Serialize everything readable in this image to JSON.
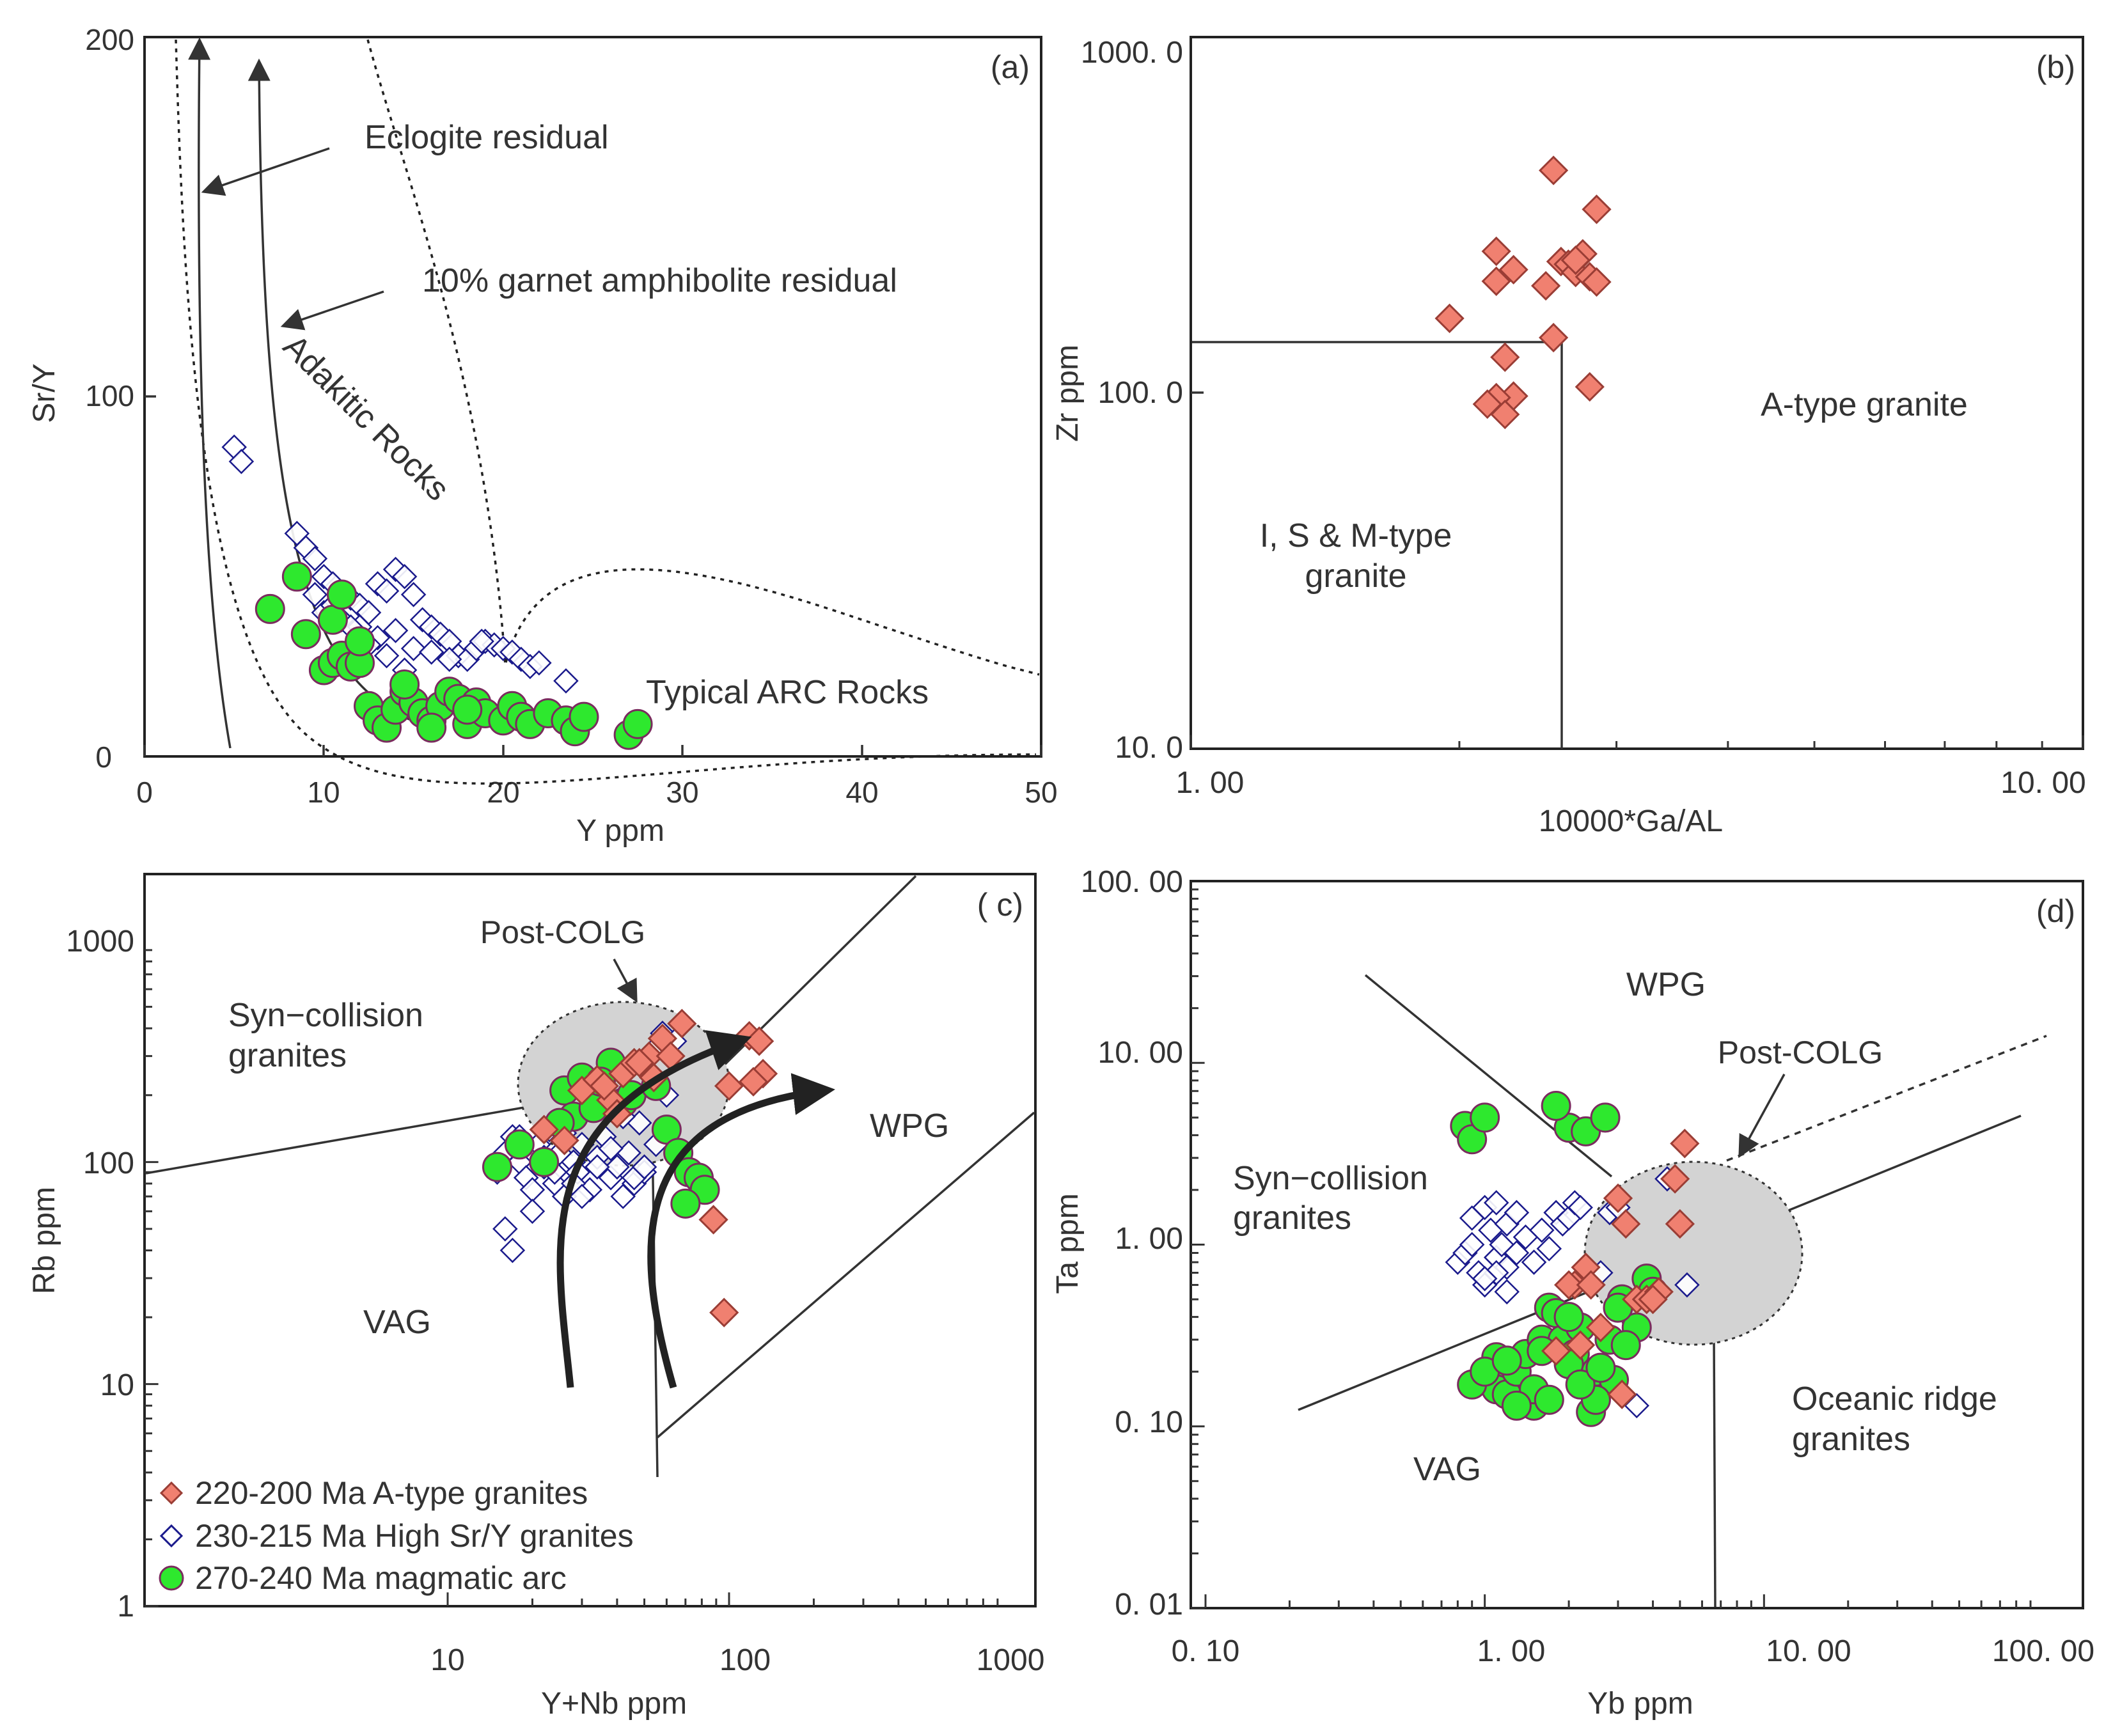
{
  "chart_data": [
    {
      "panel": "a",
      "type": "scatter",
      "panel_label": "(a)",
      "xlabel": "Y ppm",
      "ylabel": "Sr/Y",
      "xlim": [
        0,
        50
      ],
      "ylim": [
        0,
        200
      ],
      "xticks": [
        "0",
        "10",
        "20",
        "30",
        "40",
        "50"
      ],
      "yticks": [
        "0",
        "100",
        "200"
      ],
      "annotations": [
        "Eclogite residual",
        "10% garnet amphibolite residual",
        "Adakitic Rocks",
        "Typical  ARC  Rocks"
      ],
      "series": [
        {
          "name": "230-215 Ma High Sr/Y granites",
          "marker": "open-diamond",
          "x": [
            5,
            5.4,
            8.5,
            9,
            9.5,
            10,
            10.5,
            11,
            11.5,
            12,
            12.5,
            13,
            13.5,
            14,
            14.5,
            15,
            15.5,
            16,
            16.5,
            17,
            17.5,
            18,
            18.5,
            19,
            19.5,
            20,
            20.5,
            21,
            21.5,
            22,
            23.5,
            10,
            11,
            12,
            13,
            14,
            15,
            16,
            17,
            9.5,
            10.5,
            11.5,
            12.5,
            13.5,
            14.5,
            18.8
          ],
          "y": [
            86,
            82,
            62,
            58,
            55,
            50,
            48,
            45,
            44,
            42,
            40,
            48,
            46,
            52,
            50,
            45,
            38,
            36,
            34,
            32,
            28,
            27,
            30,
            32,
            31,
            30,
            29,
            27,
            25,
            26,
            21,
            40,
            38,
            36,
            33,
            35,
            30,
            29,
            27,
            45,
            42,
            36,
            31,
            28,
            24,
            32
          ]
        },
        {
          "name": "270-240 Ma magmatic arc",
          "marker": "green-circle",
          "x": [
            7,
            8.5,
            9,
            10,
            10.5,
            11,
            11.5,
            12,
            12.5,
            13,
            13.5,
            14,
            14.5,
            15,
            15.5,
            16,
            16.5,
            17,
            17.5,
            18,
            18.5,
            19,
            20,
            20.5,
            21,
            21.5,
            22.5,
            23.5,
            24,
            24.5,
            27,
            27.5,
            12,
            14.5,
            10.5,
            11,
            16,
            18
          ],
          "y": [
            41,
            50,
            34,
            24,
            26,
            28,
            25,
            26,
            14,
            10,
            8,
            13,
            18,
            15,
            12,
            10,
            14,
            18,
            16,
            9,
            15,
            12,
            10,
            14,
            11,
            9,
            12,
            10,
            7,
            11,
            6,
            9,
            32,
            20,
            38,
            45,
            8,
            13
          ]
        }
      ]
    },
    {
      "panel": "b",
      "type": "scatter",
      "panel_label": "(b)",
      "xlabel": "10000*Ga/AL",
      "ylabel": "Zr ppm",
      "xscale": "log",
      "yscale": "log",
      "xlim": [
        1,
        10
      ],
      "ylim": [
        10,
        1000
      ],
      "xticks": [
        "1. 00",
        "10. 00"
      ],
      "yticks": [
        "10. 0",
        "100. 0",
        "1000. 0"
      ],
      "annotations": [
        "A-type granite",
        "I, S & M-type",
        "granite"
      ],
      "series": [
        {
          "name": "220-200 Ma A-type granites",
          "marker": "filled-diamond",
          "x": [
            1.95,
            2.2,
            2.3,
            2.2,
            2.25,
            2.3,
            2.5,
            2.55,
            2.6,
            2.65,
            2.7,
            2.75,
            2.8,
            2.85,
            2.55,
            2.7,
            2.85,
            2.8,
            2.2,
            2.25,
            2.15
          ],
          "y": [
            162,
            250,
            222,
            206,
            126,
            98,
            200,
            422,
            234,
            230,
            218,
            246,
            212,
            328,
            143,
            236,
            205,
            104,
            97,
            87,
            93
          ]
        }
      ]
    },
    {
      "panel": "c",
      "type": "scatter",
      "panel_label": "( c)",
      "xlabel": "Y+Nb ppm",
      "ylabel": "Rb ppm",
      "xscale": "log",
      "yscale": "log",
      "xlim": [
        1,
        1000
      ],
      "ylim": [
        1,
        2000
      ],
      "xticks": [
        "10",
        "100",
        "1000"
      ],
      "yticks": [
        "1",
        "10",
        "100",
        "1000"
      ],
      "annotations": [
        "Post-COLG",
        "Syn−collision",
        "granites",
        "WPG",
        "VAG"
      ],
      "legend": [
        "220-200 Ma A-type granites",
        "230-215 Ma High Sr/Y granites",
        "270-240 Ma magmatic arc"
      ],
      "series": [
        {
          "name": "220-200 Ma A-type granites",
          "marker": "filled-diamond",
          "x": [
            22,
            26,
            30,
            34,
            38,
            42,
            46,
            52,
            58,
            62,
            68,
            118,
            128,
            132,
            122,
            88,
            96,
            100,
            36,
            40,
            48,
            54
          ],
          "y": [
            140,
            125,
            210,
            235,
            190,
            250,
            280,
            300,
            360,
            300,
            420,
            370,
            350,
            250,
            230,
            55,
            21,
            220,
            220,
            165,
            280,
            240
          ]
        },
        {
          "name": "230-215 Ma High Sr/Y granites",
          "marker": "open-diamond",
          "x": [
            15,
            16,
            17,
            18,
            19,
            20,
            21,
            22,
            23,
            24,
            25,
            26,
            27,
            28,
            29,
            30,
            32,
            34,
            36,
            38,
            40,
            42,
            44,
            46,
            48,
            50,
            52,
            54,
            58,
            16,
            17,
            18,
            20,
            22,
            24,
            26,
            28,
            30,
            34,
            38,
            42,
            46,
            50,
            55,
            60,
            64
          ],
          "y": [
            90,
            110,
            130,
            100,
            85,
            75,
            120,
            95,
            140,
            80,
            110,
            70,
            150,
            100,
            90,
            120,
            75,
            105,
            130,
            85,
            95,
            70,
            110,
            80,
            150,
            90,
            250,
            320,
            380,
            50,
            40,
            130,
            60,
            105,
            90,
            135,
            80,
            70,
            95,
            115,
            160,
            85,
            95,
            120,
            200,
            350
          ]
        },
        {
          "name": "270-240 Ma magmatic arc",
          "marker": "green-circle",
          "x": [
            15,
            18,
            22,
            26,
            30,
            28,
            33,
            38,
            42,
            45,
            55,
            60,
            66,
            72,
            78,
            82,
            70,
            25,
            35
          ],
          "y": [
            95,
            120,
            100,
            210,
            240,
            160,
            175,
            280,
            185,
            200,
            220,
            140,
            110,
            90,
            85,
            75,
            65,
            150,
            230
          ]
        }
      ]
    },
    {
      "panel": "d",
      "type": "scatter",
      "panel_label": "(d)",
      "xlabel": "Yb ppm",
      "ylabel": "Ta ppm",
      "xscale": "log",
      "yscale": "log",
      "xlim": [
        0.1,
        100
      ],
      "ylim": [
        0.01,
        100
      ],
      "xticks": [
        "0. 10",
        "1. 00",
        "10. 00",
        "100. 00"
      ],
      "yticks": [
        "0. 01",
        "0. 10",
        "1. 00",
        "10. 00",
        "100. 00"
      ],
      "annotations": [
        "WPG",
        "Post-COLG",
        "Syn−collision",
        "granites",
        "Oceanic ridge",
        "granites",
        "VAG"
      ],
      "series": [
        {
          "name": "220-200 Ma A-type granites",
          "marker": "filled-diamond",
          "x": [
            2.1,
            2.3,
            2.6,
            3,
            3.2,
            3.5,
            3.8,
            4.2,
            4.8,
            5,
            5.2,
            2,
            2.4,
            1.8,
            2.2,
            3.1,
            4
          ],
          "y": [
            0.6,
            0.75,
            0.35,
            1.8,
            1.3,
            0.5,
            0.5,
            0.55,
            2.3,
            1.3,
            3.6,
            0.6,
            0.6,
            0.26,
            0.28,
            0.15,
            0.5
          ]
        },
        {
          "name": "230-215 Ma High Sr/Y granites",
          "marker": "open-diamond",
          "x": [
            0.8,
            0.85,
            0.9,
            0.95,
            1,
            1.05,
            1.1,
            1.15,
            1.2,
            1.3,
            1.4,
            1.5,
            1.6,
            1.7,
            1.8,
            1.9,
            2,
            2.1,
            2.2,
            2.4,
            2.6,
            2.8,
            3,
            3.5,
            4.5,
            5,
            5.3,
            0.9,
            1,
            1.1,
            1.2,
            1.3,
            1.0,
            1.1,
            1.2
          ],
          "y": [
            0.8,
            0.9,
            1.0,
            0.7,
            1.6,
            1.2,
            0.85,
            1.0,
            0.75,
            0.9,
            1.1,
            0.8,
            1.2,
            0.95,
            1.5,
            1.3,
            1.4,
            1.7,
            1.6,
            0.6,
            0.7,
            1.5,
            1.6,
            0.13,
            2.3,
            1.3,
            0.6,
            1.4,
            0.6,
            0.7,
            1.3,
            1.5,
            0.65,
            1.7,
            0.55
          ]
        },
        {
          "name": "270-240 Ma magmatic arc",
          "marker": "green-circle",
          "x": [
            0.85,
            0.9,
            1.0,
            1.05,
            1.1,
            1.2,
            1.3,
            1.4,
            1.5,
            1.6,
            1.7,
            1.8,
            1.9,
            2.0,
            2.1,
            2.2,
            2.3,
            2.5,
            2.7,
            2.9,
            3.1,
            3.5,
            3.8,
            4.0,
            1.5,
            1.7,
            2.0,
            2.4,
            2.8,
            3.0,
            0.9,
            1.1,
            1.3,
            1.6,
            2.0,
            2.5,
            3.2,
            1.0,
            1.2,
            1.8,
            2.2,
            2.6
          ],
          "y": [
            4.5,
            3.8,
            5.0,
            0.2,
            0.16,
            0.15,
            0.2,
            0.25,
            0.13,
            0.3,
            0.45,
            0.42,
            0.3,
            4.4,
            0.25,
            0.35,
            4.2,
            0.2,
            5.0,
            0.18,
            0.5,
            0.35,
            0.65,
            0.55,
            0.16,
            0.14,
            0.22,
            0.12,
            0.3,
            0.45,
            0.17,
            0.24,
            0.13,
            0.26,
            0.4,
            0.14,
            0.28,
            0.2,
            0.23,
            5.8,
            0.17,
            0.21
          ]
        }
      ]
    }
  ]
}
